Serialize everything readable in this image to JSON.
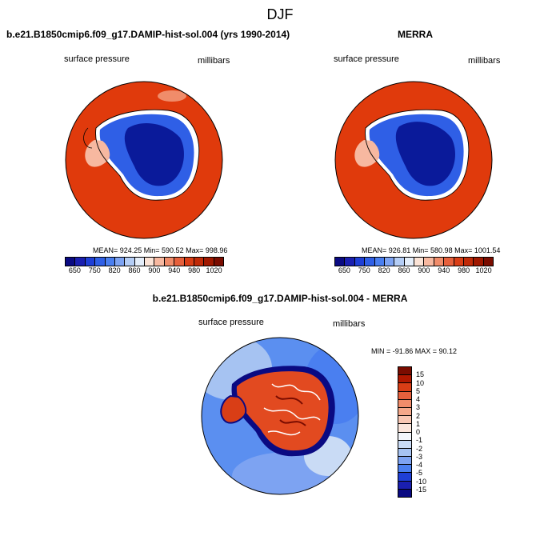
{
  "main_title": "DJF",
  "panels": [
    {
      "title": "b.e21.B1850cmip6.f09_g17.DAMIP-hist-sol.004 (yrs 1990-2014)",
      "left_label": "surface pressure",
      "right_label": "millibars",
      "stats": "MEAN= 924.25   Min= 590.52   Max= 998.96"
    },
    {
      "title": "MERRA",
      "left_label": "surface pressure",
      "right_label": "millibars",
      "stats": "MEAN= 926.81   Min= 580.98   Max= 1001.54"
    },
    {
      "title": "b.e21.B1850cmip6.f09_g17.DAMIP-hist-sol.004 - MERRA",
      "left_label": "surface pressure",
      "right_label": "millibars",
      "stats": "MIN = -91.86 MAX =  90.12"
    }
  ],
  "colorbar_abs": {
    "labels": [
      "650",
      "750",
      "820",
      "860",
      "900",
      "940",
      "980",
      "1020"
    ],
    "colors": [
      "#0a0a82",
      "#1a1fb0",
      "#1f3fd6",
      "#2f5fe6",
      "#4a7ff0",
      "#7da3f2",
      "#b4cdf5",
      "#e4eefa",
      "#fbe3d6",
      "#f7b8a0",
      "#f08c6a",
      "#e6603c",
      "#d93e16",
      "#c02a08",
      "#a01800",
      "#7a0c00"
    ]
  },
  "colorbar_diff": {
    "labels": [
      "15",
      "10",
      "5",
      "4",
      "3",
      "2",
      "1",
      "0",
      "-1",
      "-2",
      "-3",
      "-4",
      "-5",
      "-10",
      "-15"
    ],
    "colors": [
      "#7a0c00",
      "#b01800",
      "#d93e16",
      "#e6603c",
      "#f08c6a",
      "#f5a88a",
      "#f9c8b4",
      "#fbe6dc",
      "#f3f6fb",
      "#c9dbf5",
      "#a6c3f2",
      "#7da3f2",
      "#4a7ff0",
      "#1f3fd6",
      "#1a1fb0",
      "#0a0a82"
    ]
  },
  "colors": {
    "ocean_abs": "#e03a0c",
    "land_high": "#0a1a9a",
    "land_mid": "#2f5fe6",
    "diff_bg": "#5b8ff0",
    "diff_land": "#e24a20"
  }
}
